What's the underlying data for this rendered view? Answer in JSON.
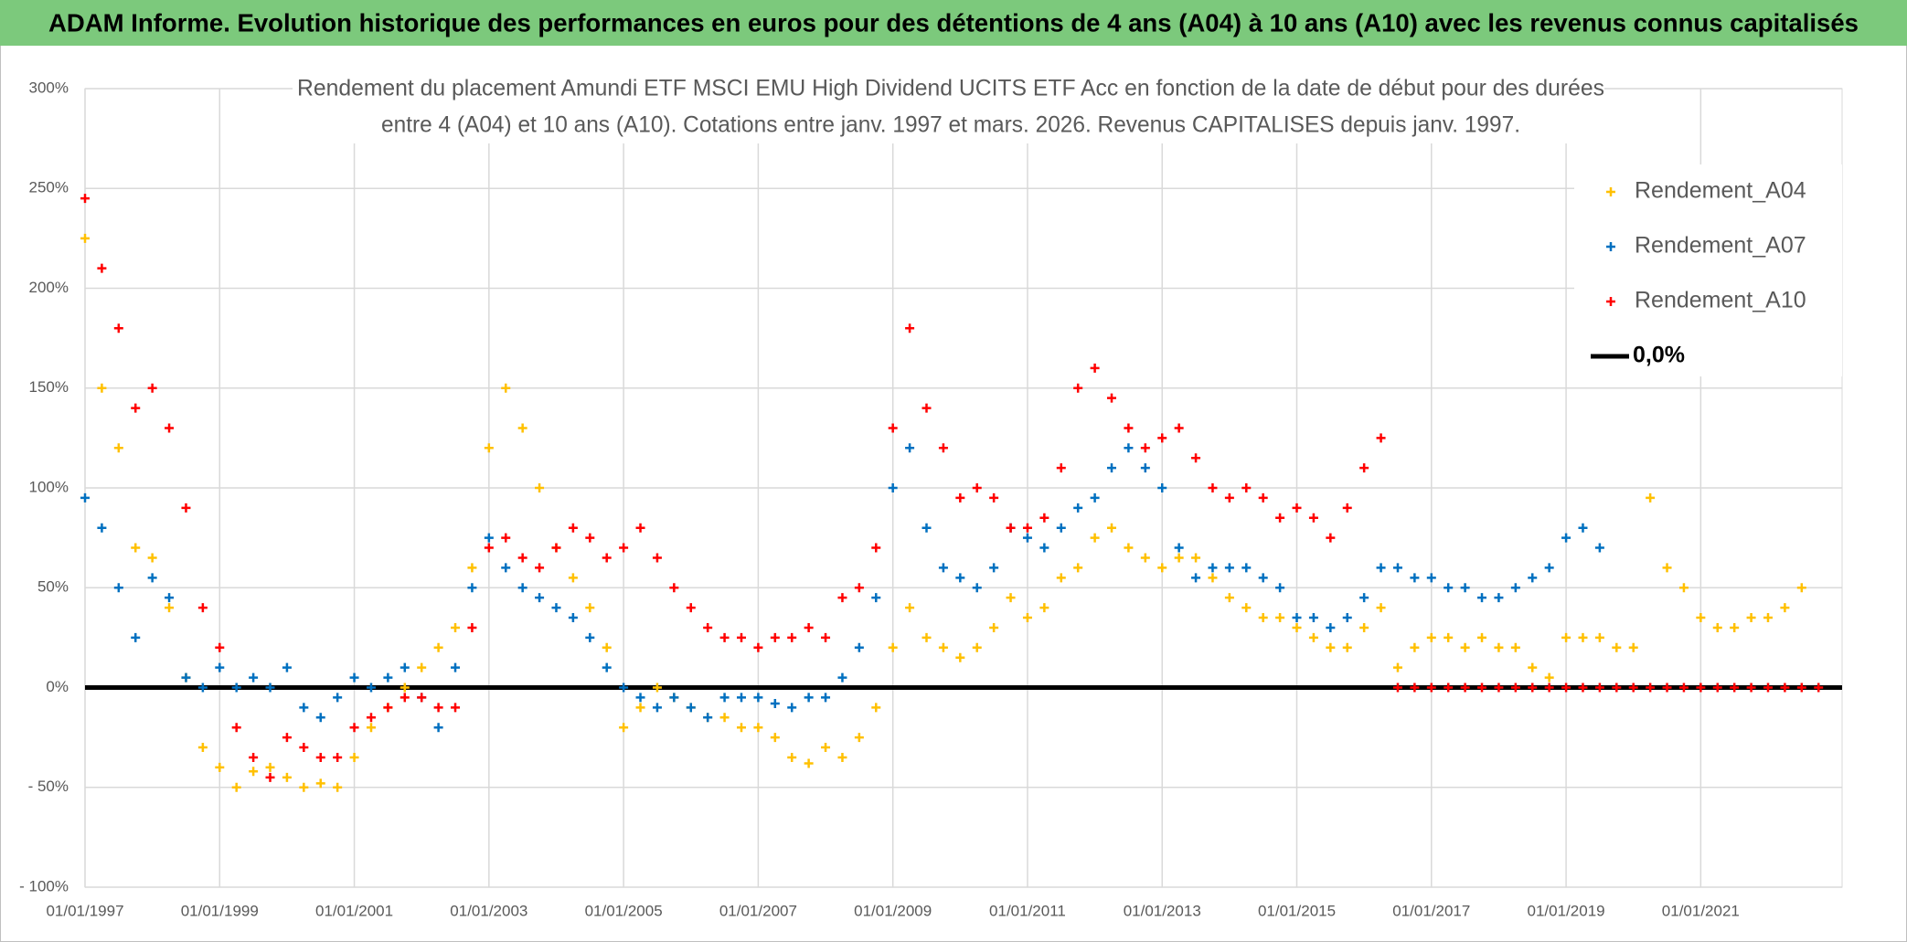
{
  "header": "ADAM Informe. Evolution historique des performances en euros pour des détentions de 4 ans (A04) à 10 ans (A10) avec les revenus connus capitalisés",
  "chart_data": {
    "type": "scatter",
    "title_lines": [
      "Rendement du placement Amundi ETF MSCI EMU High Dividend UCITS ETF Acc en fonction de la date de début pour des durées",
      "entre 4 (A04) et 10 ans (A10). Cotations entre janv. 1997 et mars. 2026. Revenus CAPITALISES depuis janv. 1997."
    ],
    "x": [
      1997,
      1997.25,
      1997.5,
      1997.75,
      1998,
      1998.25,
      1998.5,
      1998.75,
      1999,
      1999.25,
      1999.5,
      1999.75,
      2000,
      2000.25,
      2000.5,
      2000.75,
      2001,
      2001.25,
      2001.5,
      2001.75,
      2002,
      2002.25,
      2002.5,
      2002.75,
      2003,
      2003.25,
      2003.5,
      2003.75,
      2004,
      2004.25,
      2004.5,
      2004.75,
      2005,
      2005.25,
      2005.5,
      2005.75,
      2006,
      2006.25,
      2006.5,
      2006.75,
      2007,
      2007.25,
      2007.5,
      2007.75,
      2008,
      2008.25,
      2008.5,
      2008.75,
      2009,
      2009.25,
      2009.5,
      2009.75,
      2010,
      2010.25,
      2010.5,
      2010.75,
      2011,
      2011.25,
      2011.5,
      2011.75,
      2012,
      2012.25,
      2012.5,
      2012.75,
      2013,
      2013.25,
      2013.5,
      2013.75,
      2014,
      2014.25,
      2014.5,
      2014.75,
      2015,
      2015.25,
      2015.5,
      2015.75,
      2016,
      2016.25,
      2016.5,
      2016.75,
      2017,
      2017.25,
      2017.5,
      2017.75,
      2018,
      2018.25,
      2018.5,
      2018.75,
      2019,
      2019.25,
      2019.5,
      2019.75,
      2020,
      2020.25,
      2020.5,
      2020.75,
      2021,
      2021.25,
      2021.5,
      2021.75,
      2022,
      2022.25,
      2022.5,
      2022.75
    ],
    "series": [
      {
        "name": "Rendement_A04",
        "color": "#ffc000",
        "values": [
          225,
          150,
          120,
          70,
          65,
          40,
          5,
          -30,
          -40,
          -50,
          -42,
          -40,
          -45,
          -50,
          -48,
          -50,
          -35,
          -20,
          -10,
          0,
          10,
          20,
          30,
          60,
          120,
          150,
          130,
          100,
          70,
          55,
          40,
          20,
          -20,
          -10,
          0,
          -5,
          -10,
          -15,
          -15,
          -20,
          -20,
          -25,
          -35,
          -38,
          -30,
          -35,
          -25,
          -10,
          20,
          40,
          25,
          20,
          15,
          20,
          30,
          45,
          35,
          40,
          55,
          60,
          75,
          80,
          70,
          65,
          60,
          65,
          65,
          55,
          45,
          40,
          35,
          35,
          30,
          25,
          20,
          20,
          30,
          40,
          10,
          20,
          25,
          25,
          20,
          25,
          20,
          20,
          10,
          5,
          25,
          25,
          25,
          20,
          20,
          95,
          60,
          50,
          35,
          30,
          30,
          35,
          35,
          40,
          50,
          null
        ]
      },
      {
        "name": "Rendement_A07",
        "color": "#0070c0",
        "values": [
          95,
          80,
          50,
          25,
          55,
          45,
          5,
          0,
          10,
          0,
          5,
          0,
          10,
          -10,
          -15,
          -5,
          5,
          0,
          5,
          10,
          -5,
          -20,
          10,
          50,
          75,
          60,
          50,
          45,
          40,
          35,
          25,
          10,
          0,
          -5,
          -10,
          -5,
          -10,
          -15,
          -5,
          -5,
          -5,
          -8,
          -10,
          -5,
          -5,
          5,
          20,
          45,
          100,
          120,
          80,
          60,
          55,
          50,
          60,
          80,
          75,
          70,
          80,
          90,
          95,
          110,
          120,
          110,
          100,
          70,
          55,
          60,
          60,
          60,
          55,
          50,
          35,
          35,
          30,
          35,
          45,
          60,
          60,
          55,
          55,
          50,
          50,
          45,
          45,
          50,
          55,
          60,
          75,
          80,
          70,
          null,
          null,
          null,
          null,
          null,
          null,
          null,
          null,
          null,
          null,
          null,
          null,
          null
        ]
      },
      {
        "name": "Rendement_A10",
        "color": "#ff0000",
        "values": [
          245,
          210,
          180,
          140,
          150,
          130,
          90,
          40,
          20,
          -20,
          -35,
          -45,
          -25,
          -30,
          -35,
          -35,
          -20,
          -15,
          -10,
          -5,
          -5,
          -10,
          -10,
          30,
          70,
          75,
          65,
          60,
          70,
          80,
          75,
          65,
          70,
          80,
          65,
          50,
          40,
          30,
          25,
          25,
          20,
          25,
          25,
          30,
          25,
          45,
          50,
          70,
          130,
          180,
          140,
          120,
          95,
          100,
          95,
          80,
          80,
          85,
          110,
          150,
          160,
          145,
          130,
          120,
          125,
          130,
          115,
          100,
          95,
          100,
          95,
          85,
          90,
          85,
          75,
          90,
          110,
          125,
          0,
          0,
          0,
          0,
          0,
          0,
          0,
          0,
          0,
          0,
          0,
          0,
          0,
          0,
          0,
          0,
          0,
          0,
          0,
          0,
          0,
          0,
          0,
          0,
          0,
          0
        ]
      }
    ],
    "reference_line": {
      "name": "0,0%",
      "value": 0,
      "color": "#000000"
    },
    "xlim": [
      1997,
      2023.1
    ],
    "xticks": [
      {
        "value": 1997,
        "label": "01/01/1997"
      },
      {
        "value": 1999,
        "label": "01/01/1999"
      },
      {
        "value": 2001,
        "label": "01/01/2001"
      },
      {
        "value": 2003,
        "label": "01/01/2003"
      },
      {
        "value": 2005,
        "label": "01/01/2005"
      },
      {
        "value": 2007,
        "label": "01/01/2007"
      },
      {
        "value": 2009,
        "label": "01/01/2009"
      },
      {
        "value": 2011,
        "label": "01/01/2011"
      },
      {
        "value": 2013,
        "label": "01/01/2013"
      },
      {
        "value": 2015,
        "label": "01/01/2015"
      },
      {
        "value": 2017,
        "label": "01/01/2017"
      },
      {
        "value": 2019,
        "label": "01/01/2019"
      },
      {
        "value": 2021,
        "label": "01/01/2021"
      }
    ],
    "ylim": [
      -100,
      300
    ],
    "yticks": [
      {
        "value": -100,
        "label": "- 100%"
      },
      {
        "value": -50,
        "label": "- 50%"
      },
      {
        "value": 0,
        "label": "0%"
      },
      {
        "value": 50,
        "label": "50%"
      },
      {
        "value": 100,
        "label": "100%"
      },
      {
        "value": 150,
        "label": "150%"
      },
      {
        "value": 200,
        "label": "200%"
      },
      {
        "value": 250,
        "label": "250%"
      },
      {
        "value": 300,
        "label": "300%"
      }
    ],
    "grid": true,
    "legend": "top-right"
  }
}
